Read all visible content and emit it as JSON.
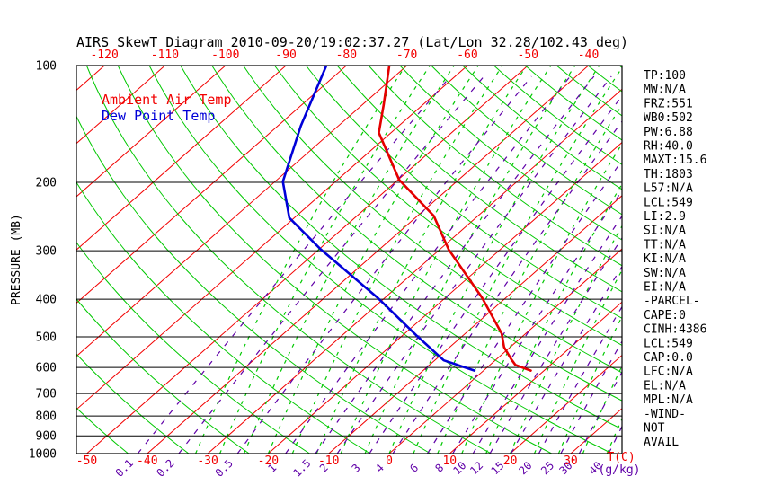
{
  "title": "AIRS SkewT Diagram 2010-09-20/19:02:37.27 (Lat/Lon 32.28/102.43 deg)",
  "legend": {
    "items": [
      {
        "label": "Ambient Air Temp",
        "color": "#f20000"
      },
      {
        "label": "Dew Point Temp",
        "color": "#0000d8"
      }
    ]
  },
  "stats_panel": {
    "lines": [
      "TP:100",
      "MW:N/A",
      "FRZ:551",
      "WB0:502",
      "PW:6.88",
      "RH:40.0",
      "MAXT:15.6",
      "TH:1803",
      "L57:N/A",
      "LCL:549",
      "LI:2.9",
      "SI:N/A",
      "TT:N/A",
      "KI:N/A",
      "SW:N/A",
      "EI:N/A",
      "-PARCEL-",
      "CAPE:0",
      "CINH:4386",
      "LCL:549",
      "CAP:0.0",
      "LFC:N/A",
      "EL:N/A",
      "MPL:N/A",
      "-WIND-",
      "NOT",
      "AVAIL"
    ]
  },
  "axes": {
    "pressure": {
      "caption": "PRESSURE (MB)",
      "ticks": [
        100,
        200,
        300,
        400,
        500,
        600,
        700,
        800,
        900,
        1000
      ],
      "unit": "MB",
      "scale": "log"
    },
    "temp_top": {
      "ticks": [
        -120,
        -110,
        -100,
        -90,
        -80,
        -70,
        -60,
        -50,
        -40
      ],
      "color": "#f20000"
    },
    "temp_bottom": {
      "ticks": [
        -50,
        -40,
        -30,
        -20,
        -10,
        0,
        10,
        20,
        30
      ],
      "caption": "T(C)",
      "color": "#f20000"
    },
    "mixing_ratio": {
      "ticks": [
        0.1,
        0.2,
        0.5,
        1,
        1.5,
        2,
        3,
        4,
        6,
        8,
        10,
        12,
        15,
        20,
        25,
        30,
        40
      ],
      "caption": "(g/kg)",
      "color": "#6000a8"
    }
  },
  "chart_data": {
    "type": "line",
    "title": "AIRS SkewT Diagram 2010-09-20/19:02:37.27 (Lat/Lon 32.28/102.43 deg)",
    "xlabel": "Temperature (C), skewed 45 deg",
    "ylabel": "Pressure (MB), logarithmic",
    "x_range_at_surface_c": [
      -52,
      39
    ],
    "pressure_range_mb": [
      100,
      1000
    ],
    "legend_position": "top-left",
    "grid": {
      "isotherms_c": {
        "min": -130,
        "max": 50,
        "step": 10,
        "color": "#f20000",
        "style": "solid"
      },
      "dry_adiabats_theta_k": {
        "min": 220,
        "max": 480,
        "step": 10,
        "color": "#00c800",
        "style": "solid"
      },
      "moist_adiabats_surface_c": {
        "min": -32,
        "max": 72,
        "step": 4,
        "color": "#00c800",
        "style": "dashed"
      },
      "mixing_ratio_gkg": [
        0.1,
        0.2,
        0.5,
        1,
        1.5,
        2,
        3,
        4,
        6,
        8,
        10,
        12,
        15,
        20,
        25,
        30,
        40
      ],
      "pressure_lines_mb": [
        100,
        200,
        300,
        400,
        500,
        600,
        700,
        800,
        900,
        1000
      ]
    },
    "series": [
      {
        "name": "Ambient Air Temp",
        "color": "#e40000",
        "points": [
          {
            "t": -72.9,
            "p": 100
          },
          {
            "t": -66.5,
            "p": 126
          },
          {
            "t": -62.0,
            "p": 149
          },
          {
            "t": -49.8,
            "p": 197
          },
          {
            "t": -37.3,
            "p": 244
          },
          {
            "t": -28.5,
            "p": 298
          },
          {
            "t": -14.0,
            "p": 396
          },
          {
            "t": -4.0,
            "p": 490
          },
          {
            "t": -1.0,
            "p": 532
          },
          {
            "t": 2.5,
            "p": 572
          },
          {
            "t": 4.2,
            "p": 591
          },
          {
            "t": 7.8,
            "p": 611
          }
        ]
      },
      {
        "name": "Dew Point Temp",
        "color": "#0000d8",
        "points": [
          {
            "t": -83.3,
            "p": 100
          },
          {
            "t": -76.2,
            "p": 143
          },
          {
            "t": -68.7,
            "p": 199
          },
          {
            "t": -60.8,
            "p": 247
          },
          {
            "t": -49.6,
            "p": 298
          },
          {
            "t": -31.3,
            "p": 396
          },
          {
            "t": -17.7,
            "p": 496
          },
          {
            "t": -8.5,
            "p": 575
          },
          {
            "t": -1.5,
            "p": 611
          }
        ]
      }
    ]
  },
  "colors": {
    "isotherm": "#f20000",
    "adiabat": "#00c800",
    "mixing": "#6000a8",
    "grid_black": "#000000",
    "temp_curve": "#e40000",
    "dew_curve": "#0000d8",
    "text": "#000000"
  }
}
